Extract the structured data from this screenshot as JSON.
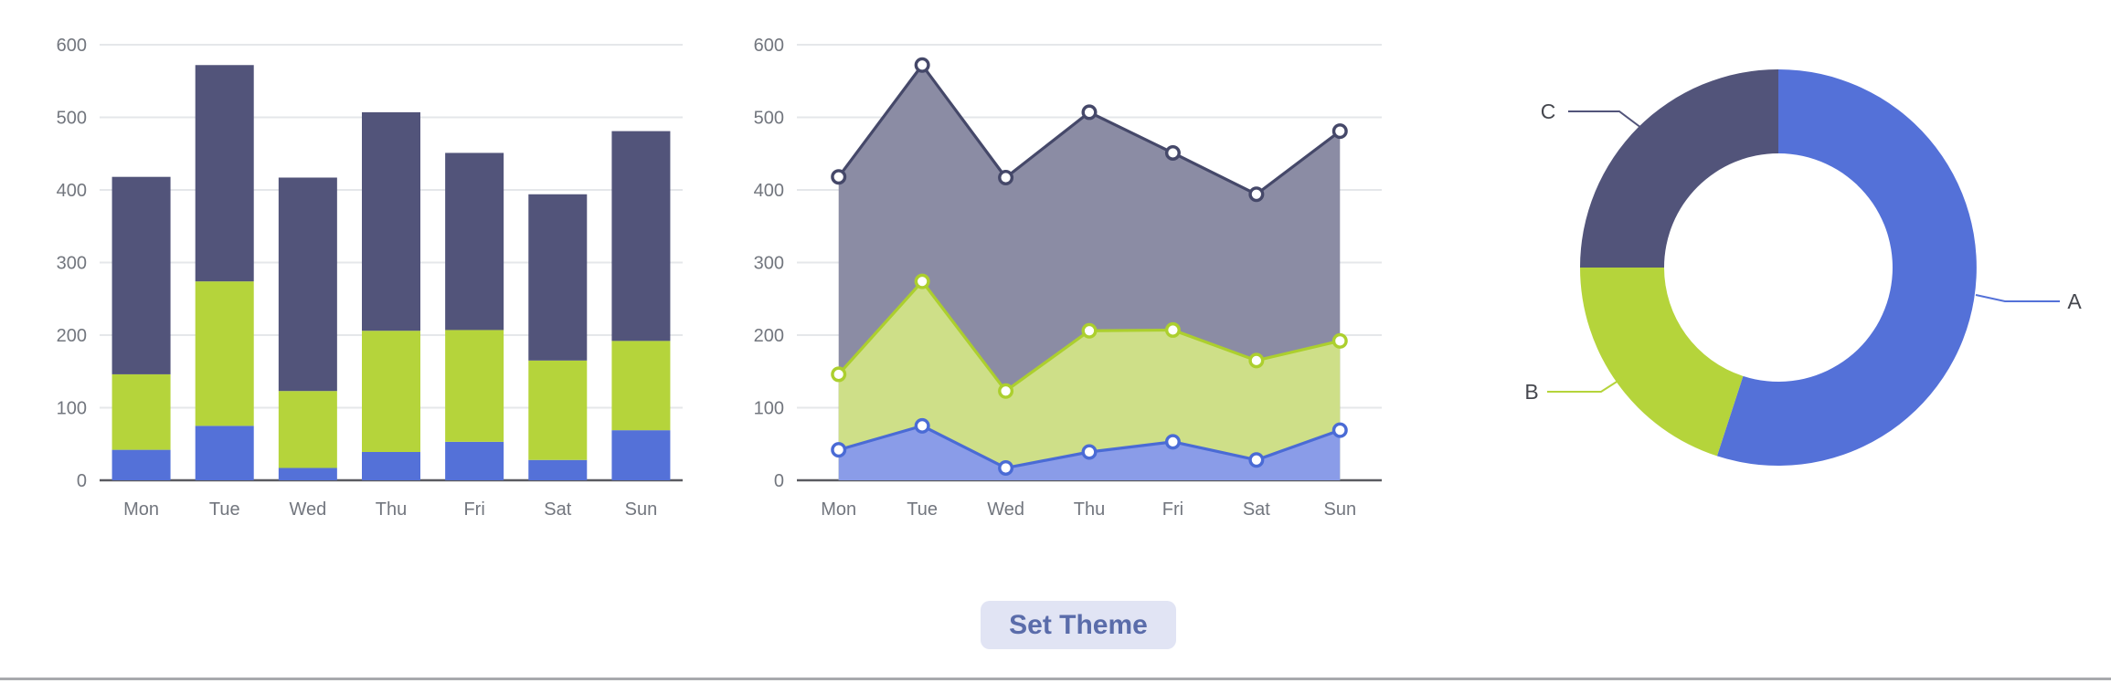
{
  "page": {
    "background": "#ffffff",
    "bottom_divider_color": "#a8a9ad"
  },
  "controls": {
    "set_theme_label": "Set Theme",
    "button_bg": "#e1e4f4",
    "button_text_color": "#5a6caa"
  },
  "axes": {
    "y_ticks": [
      "0",
      "100",
      "200",
      "300",
      "400",
      "500",
      "600"
    ],
    "y_max": 600,
    "label_color": "#72767e",
    "axis_line_color": "#5a5b61",
    "grid_line_color": "#e5e7ea"
  },
  "chart_data": [
    {
      "type": "bar",
      "stacked": true,
      "title": "",
      "xlabel": "",
      "ylabel": "",
      "ylim": [
        0,
        600
      ],
      "grid": true,
      "categories": [
        "Mon",
        "Tue",
        "Wed",
        "Thu",
        "Fri",
        "Sat",
        "Sun"
      ],
      "series": [
        {
          "name": "A",
          "color": "#5471d8",
          "values": [
            42,
            75,
            17,
            39,
            53,
            28,
            69
          ]
        },
        {
          "name": "B",
          "color": "#b5d43b",
          "values": [
            104,
            199,
            106,
            167,
            154,
            137,
            123
          ]
        },
        {
          "name": "C",
          "color": "#52547a",
          "values": [
            272,
            298,
            294,
            301,
            244,
            229,
            289
          ]
        }
      ],
      "stack_tops": {
        "A": [
          42,
          75,
          17,
          39,
          53,
          28,
          69
        ],
        "B": [
          146,
          274,
          123,
          206,
          207,
          165,
          192
        ],
        "C": [
          418,
          572,
          417,
          507,
          451,
          394,
          481
        ]
      }
    },
    {
      "type": "area",
      "stacked": true,
      "symbol": "hollow-circle",
      "ylim": [
        0,
        600
      ],
      "grid": true,
      "categories": [
        "Mon",
        "Tue",
        "Wed",
        "Thu",
        "Fri",
        "Sat",
        "Sun"
      ],
      "series": [
        {
          "name": "A",
          "line_color": "#4a6bd5",
          "fill_color": "#8a9ce8",
          "values": [
            42,
            75,
            17,
            39,
            53,
            28,
            69
          ]
        },
        {
          "name": "B",
          "line_color": "#accf2e",
          "fill_color": "#cedf88",
          "values": [
            104,
            199,
            106,
            167,
            154,
            137,
            123
          ]
        },
        {
          "name": "C",
          "line_color": "#454869",
          "fill_color": "#8b8ca4",
          "values": [
            272,
            298,
            294,
            301,
            244,
            229,
            289
          ]
        }
      ],
      "stack_tops": {
        "A": [
          42,
          75,
          17,
          39,
          53,
          28,
          69
        ],
        "B": [
          146,
          274,
          123,
          206,
          207,
          165,
          192
        ],
        "C": [
          418,
          572,
          417,
          507,
          451,
          394,
          481
        ]
      }
    },
    {
      "type": "pie",
      "donut": true,
      "label_color": "#45474e",
      "slices": [
        {
          "name": "A",
          "value": 55,
          "color": "#5471d8"
        },
        {
          "name": "B",
          "value": 20,
          "color": "#b5d43b"
        },
        {
          "name": "C",
          "value": 25,
          "color": "#52547a"
        }
      ],
      "unit": "percent-of-circle (estimated from arc angles)"
    }
  ]
}
